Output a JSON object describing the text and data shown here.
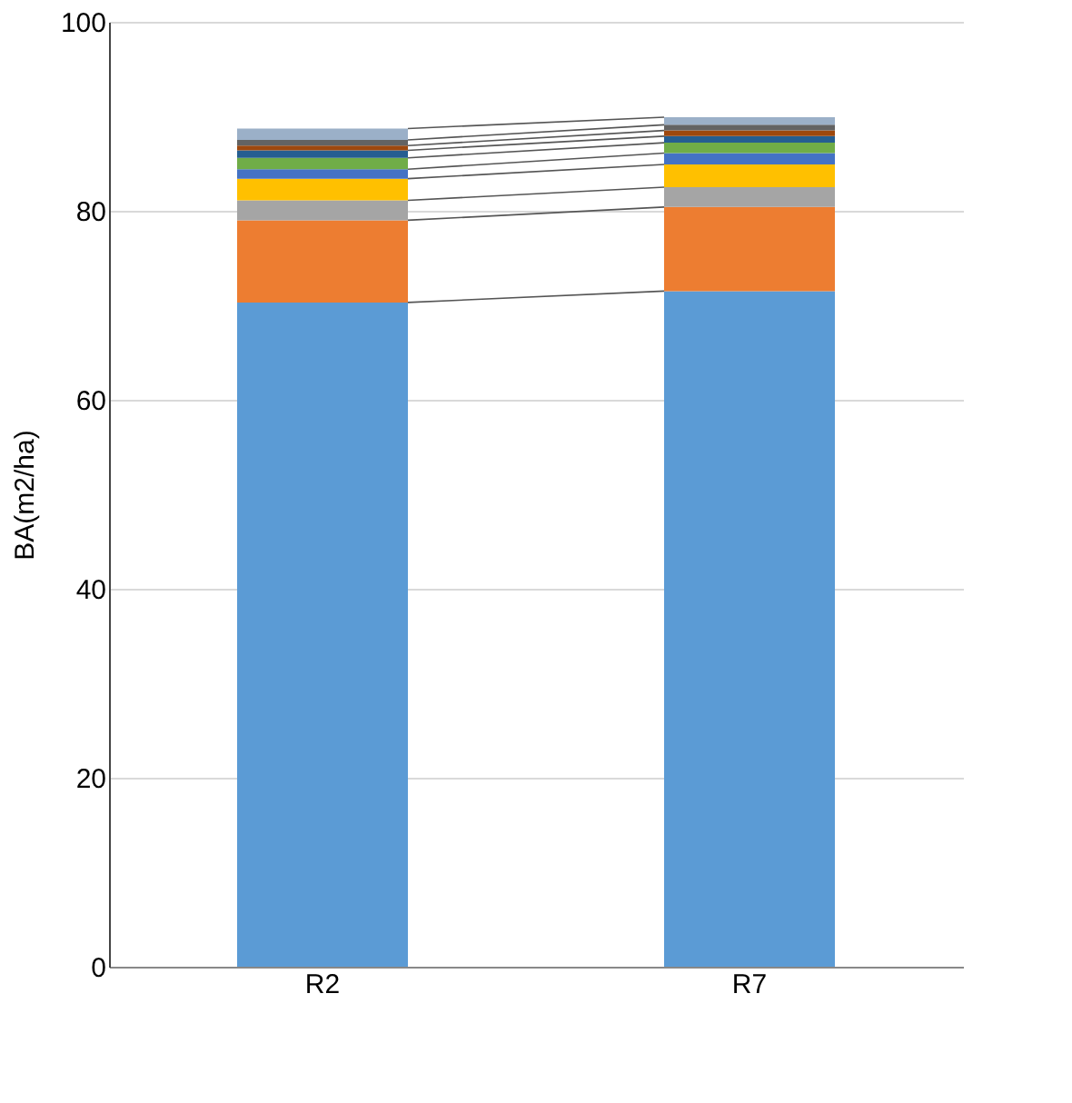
{
  "chart_data": {
    "type": "bar",
    "stacked": true,
    "ylabel": "BA(m2/ha)",
    "categories": [
      "R2",
      "R7"
    ],
    "series": [
      {
        "color": "#5b9bd5",
        "values": [
          70.3,
          71.5
        ]
      },
      {
        "color": "#ed7d31",
        "values": [
          8.7,
          8.9
        ]
      },
      {
        "color": "#a5a5a5",
        "values": [
          2.1,
          2.1
        ]
      },
      {
        "color": "#ffc000",
        "values": [
          2.3,
          2.4
        ]
      },
      {
        "color": "#4472c4",
        "values": [
          1.0,
          1.2
        ]
      },
      {
        "color": "#70ad47",
        "values": [
          1.2,
          1.1
        ]
      },
      {
        "color": "#255e91",
        "values": [
          0.8,
          0.7
        ]
      },
      {
        "color": "#9e480e",
        "values": [
          0.5,
          0.6
        ]
      },
      {
        "color": "#636363",
        "values": [
          0.6,
          0.6
        ]
      },
      {
        "color": "#9bb0c8",
        "values": [
          1.2,
          0.8
        ]
      }
    ],
    "ylim": [
      0,
      100
    ],
    "yticks": [
      0,
      20,
      40,
      60,
      80,
      100
    ],
    "grid": "y",
    "legend": false
  }
}
